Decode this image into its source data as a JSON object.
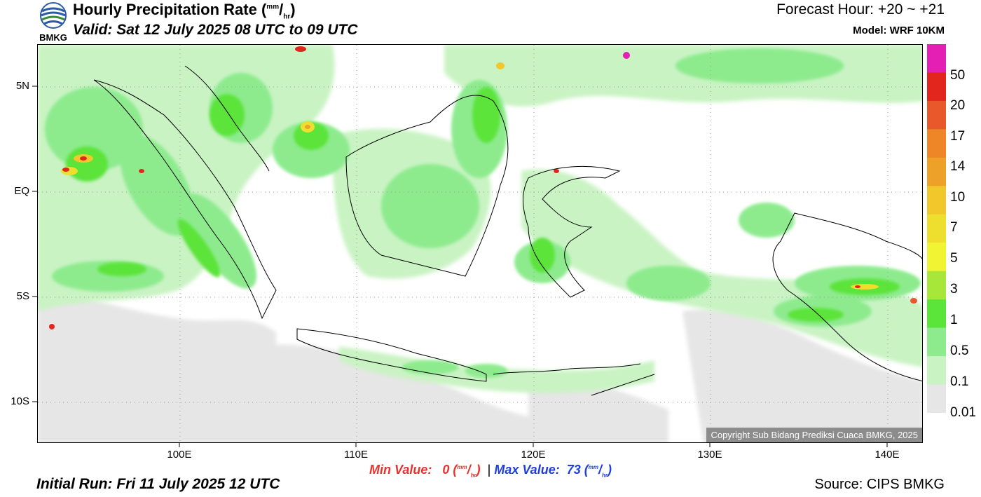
{
  "header": {
    "logo_text": "BMKG",
    "title": "Hourly Precipitation Rate",
    "unit_num": "mm",
    "unit_den": "hr",
    "valid": "Valid: Sat 12 July 2025 08 UTC to 09 UTC",
    "forecast": "Forecast Hour: +20 ~ +21",
    "model": "Model: WRF 10KM"
  },
  "map": {
    "lat_labels": [
      "5N",
      "EQ",
      "5S",
      "10S"
    ],
    "lon_labels": [
      "100E",
      "110E",
      "120E",
      "130E",
      "140E"
    ],
    "copyright": "Copyright Sub Bidang Prediksi Cuaca BMKG, 2025"
  },
  "colorbar": {
    "labels": [
      "50",
      "20",
      "17",
      "14",
      "10",
      "7",
      "5",
      "3",
      "1",
      "0.5",
      "0.1",
      "0.01"
    ],
    "colors": [
      "#e41fb4",
      "#e2261e",
      "#e8582a",
      "#ee8527",
      "#eda128",
      "#f2c72b",
      "#eede2e",
      "#f1f433",
      "#a6e739",
      "#5be43a",
      "#8deb8e",
      "#c9f3c3",
      "#e6e6e6"
    ]
  },
  "stats": {
    "min_label": "Min Value:",
    "min_value": "0",
    "separator": "|",
    "max_label": "Max Value:",
    "max_value": "73",
    "unit_num": "mm",
    "unit_den": "hr"
  },
  "footer": {
    "initial_run": "Initial Run: Fri 11 July 2025 12 UTC",
    "source": "Source: CIPS BMKG"
  }
}
